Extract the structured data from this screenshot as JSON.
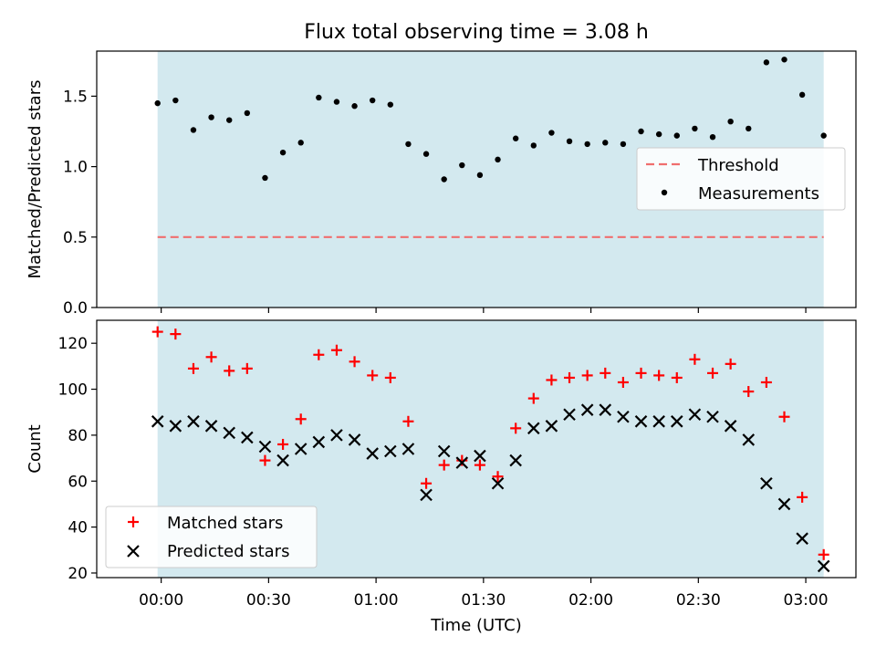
{
  "title": "Flux total observing time = 3.08 h",
  "colors": {
    "shade": "#d3e9ef",
    "threshold": "#f06e6e",
    "matched": "#ff0000",
    "predicted": "#000000",
    "measurement": "#000000"
  },
  "chart_data": [
    {
      "type": "scatter",
      "title": "Flux total observing time = 3.08 h",
      "ylabel": "Matched/Predicted stars",
      "xlabel": "",
      "x_unit": "minutes after 00:00 UTC",
      "xlim": [
        -18,
        194
      ],
      "ylim": [
        0,
        1.82
      ],
      "yticks": [
        0.0,
        0.5,
        1.0,
        1.5
      ],
      "ytick_labels": [
        "0.0",
        "0.5",
        "1.0",
        "1.5"
      ],
      "shaded_span": [
        -1,
        185
      ],
      "threshold": {
        "name": "Threshold",
        "value": 0.5,
        "style": "dashed"
      },
      "legend": {
        "position": "center-right",
        "entries": [
          "Threshold",
          "Measurements"
        ]
      },
      "series": [
        {
          "name": "Measurements",
          "marker": "dot",
          "x": [
            -1,
            4,
            9,
            14,
            19,
            24,
            29,
            34,
            39,
            44,
            49,
            54,
            59,
            64,
            69,
            74,
            79,
            84,
            89,
            94,
            99,
            104,
            109,
            114,
            119,
            124,
            129,
            134,
            139,
            144,
            149,
            154,
            159,
            164,
            169,
            174,
            179,
            185
          ],
          "y": [
            1.45,
            1.47,
            1.26,
            1.35,
            1.33,
            1.38,
            0.92,
            1.1,
            1.17,
            1.49,
            1.46,
            1.43,
            1.47,
            1.44,
            1.16,
            1.09,
            0.91,
            1.01,
            0.94,
            1.05,
            1.2,
            1.15,
            1.24,
            1.18,
            1.16,
            1.17,
            1.16,
            1.25,
            1.23,
            1.22,
            1.27,
            1.21,
            1.32,
            1.27,
            1.74,
            1.76,
            1.51,
            1.22
          ]
        }
      ]
    },
    {
      "type": "scatter",
      "title": "",
      "ylabel": "Count",
      "xlabel": "Time (UTC)",
      "x_unit": "minutes after 00:00 UTC",
      "xlim": [
        -18,
        194
      ],
      "ylim": [
        18,
        130
      ],
      "xticks": [
        0,
        30,
        60,
        90,
        120,
        150,
        180
      ],
      "xtick_labels": [
        "00:00",
        "00:30",
        "01:00",
        "01:30",
        "02:00",
        "02:30",
        "03:00"
      ],
      "yticks": [
        20,
        40,
        60,
        80,
        100,
        120
      ],
      "ytick_labels": [
        "20",
        "40",
        "60",
        "80",
        "100",
        "120"
      ],
      "shaded_span": [
        -1,
        185
      ],
      "legend": {
        "position": "lower-left",
        "entries": [
          "Matched stars",
          "Predicted stars"
        ]
      },
      "series": [
        {
          "name": "Matched stars",
          "marker": "plus",
          "x": [
            -1,
            4,
            9,
            14,
            19,
            24,
            29,
            34,
            39,
            44,
            49,
            54,
            59,
            64,
            69,
            74,
            79,
            84,
            89,
            94,
            99,
            104,
            109,
            114,
            119,
            124,
            129,
            134,
            139,
            144,
            149,
            154,
            159,
            164,
            169,
            174,
            179,
            185
          ],
          "y": [
            125,
            124,
            109,
            114,
            108,
            109,
            69,
            76,
            87,
            115,
            117,
            112,
            106,
            105,
            86,
            59,
            67,
            69,
            67,
            62,
            83,
            96,
            104,
            105,
            106,
            107,
            103,
            107,
            106,
            105,
            113,
            107,
            111,
            99,
            103,
            88,
            53,
            28
          ]
        },
        {
          "name": "Predicted stars",
          "marker": "x",
          "x": [
            -1,
            4,
            9,
            14,
            19,
            24,
            29,
            34,
            39,
            44,
            49,
            54,
            59,
            64,
            69,
            74,
            79,
            84,
            89,
            94,
            99,
            104,
            109,
            114,
            119,
            124,
            129,
            134,
            139,
            144,
            149,
            154,
            159,
            164,
            169,
            174,
            179,
            185
          ],
          "y": [
            86,
            84,
            86,
            84,
            81,
            79,
            75,
            69,
            74,
            77,
            80,
            78,
            72,
            73,
            74,
            54,
            73,
            68,
            71,
            59,
            69,
            83,
            84,
            89,
            91,
            91,
            88,
            86,
            86,
            86,
            89,
            88,
            84,
            78,
            59,
            50,
            35,
            23
          ]
        }
      ]
    }
  ]
}
